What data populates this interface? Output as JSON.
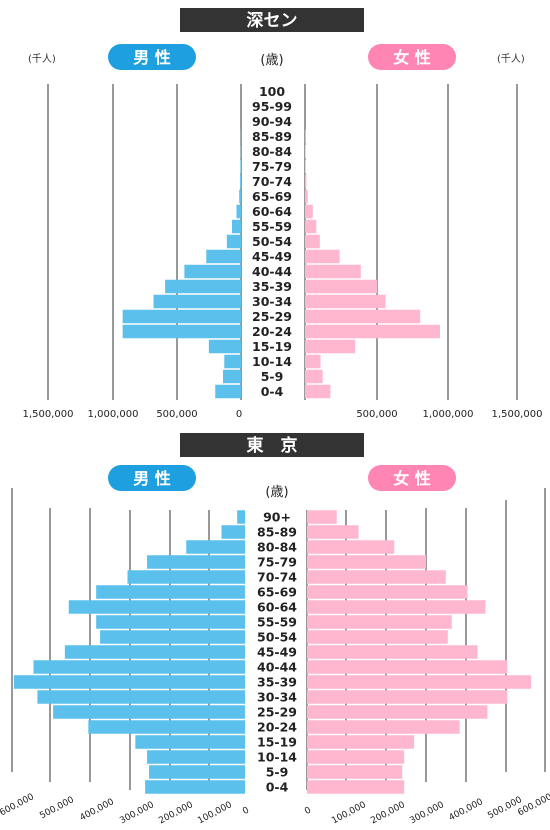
{
  "colors": {
    "male": "#5bc0eb",
    "female": "#ffb7cf",
    "male_pill": "#1ea0e0",
    "female_pill": "#ff85b5",
    "title_bg": "#333333"
  },
  "chart_data": [
    {
      "type": "bar",
      "orientation": "population-pyramid",
      "title": "深セン",
      "left_label": "男 性",
      "right_label": "女 性",
      "age_label": "(歳)",
      "unit_left": "(千人)",
      "unit_right": "(千人)",
      "categories": [
        "100",
        "95-99",
        "90-94",
        "85-89",
        "80-84",
        "75-79",
        "70-74",
        "65-69",
        "60-64",
        "55-59",
        "50-54",
        "45-49",
        "40-44",
        "35-39",
        "30-34",
        "25-29",
        "20-24",
        "15-19",
        "10-14",
        "5-9",
        "0-4"
      ],
      "series": [
        {
          "name": "男 性",
          "values": [
            0,
            0,
            0,
            1000,
            2000,
            5000,
            7000,
            14000,
            35000,
            70000,
            110000,
            270000,
            440000,
            590000,
            680000,
            920000,
            920000,
            250000,
            130000,
            140000,
            200000
          ]
        },
        {
          "name": "女 性",
          "values": [
            0,
            0,
            0,
            2000,
            3000,
            6000,
            10000,
            20000,
            55000,
            80000,
            105000,
            245000,
            395000,
            510000,
            570000,
            815000,
            955000,
            355000,
            110000,
            125000,
            180000
          ]
        }
      ],
      "xlim": [
        0,
        1500000
      ],
      "ticks_left": [
        "1,500,000",
        "1,000,000",
        "500,000",
        "0"
      ],
      "ticks_right": [
        "500,000",
        "1,000,000",
        "1,500,000"
      ]
    },
    {
      "type": "bar",
      "orientation": "population-pyramid",
      "title": "東　京",
      "left_label": "男 性",
      "right_label": "女 性",
      "age_label": "(歳)",
      "categories": [
        "90+",
        "85-89",
        "80-84",
        "75-79",
        "70-74",
        "65-69",
        "60-64",
        "55-59",
        "50-54",
        "45-49",
        "40-44",
        "35-39",
        "30-34",
        "25-29",
        "20-24",
        "15-19",
        "10-14",
        "5-9",
        "0-4"
      ],
      "series": [
        {
          "name": "男 性",
          "values": [
            20000,
            60000,
            150000,
            250000,
            300000,
            380000,
            450000,
            380000,
            370000,
            460000,
            540000,
            590000,
            530000,
            490000,
            400000,
            280000,
            250000,
            245000,
            255000
          ]
        },
        {
          "name": "女 性",
          "values": [
            75000,
            130000,
            220000,
            300000,
            350000,
            405000,
            450000,
            365000,
            355000,
            430000,
            505000,
            565000,
            505000,
            455000,
            385000,
            270000,
            245000,
            240000,
            245000
          ]
        }
      ],
      "xlim": [
        0,
        600000
      ],
      "ticks_left": [
        "600,000",
        "500,000",
        "400,000",
        "300,000",
        "200,000",
        "100,000",
        "0"
      ],
      "ticks_right": [
        "0",
        "100,000",
        "200,000",
        "300,000",
        "400,000",
        "500,000",
        "600,000"
      ]
    }
  ]
}
